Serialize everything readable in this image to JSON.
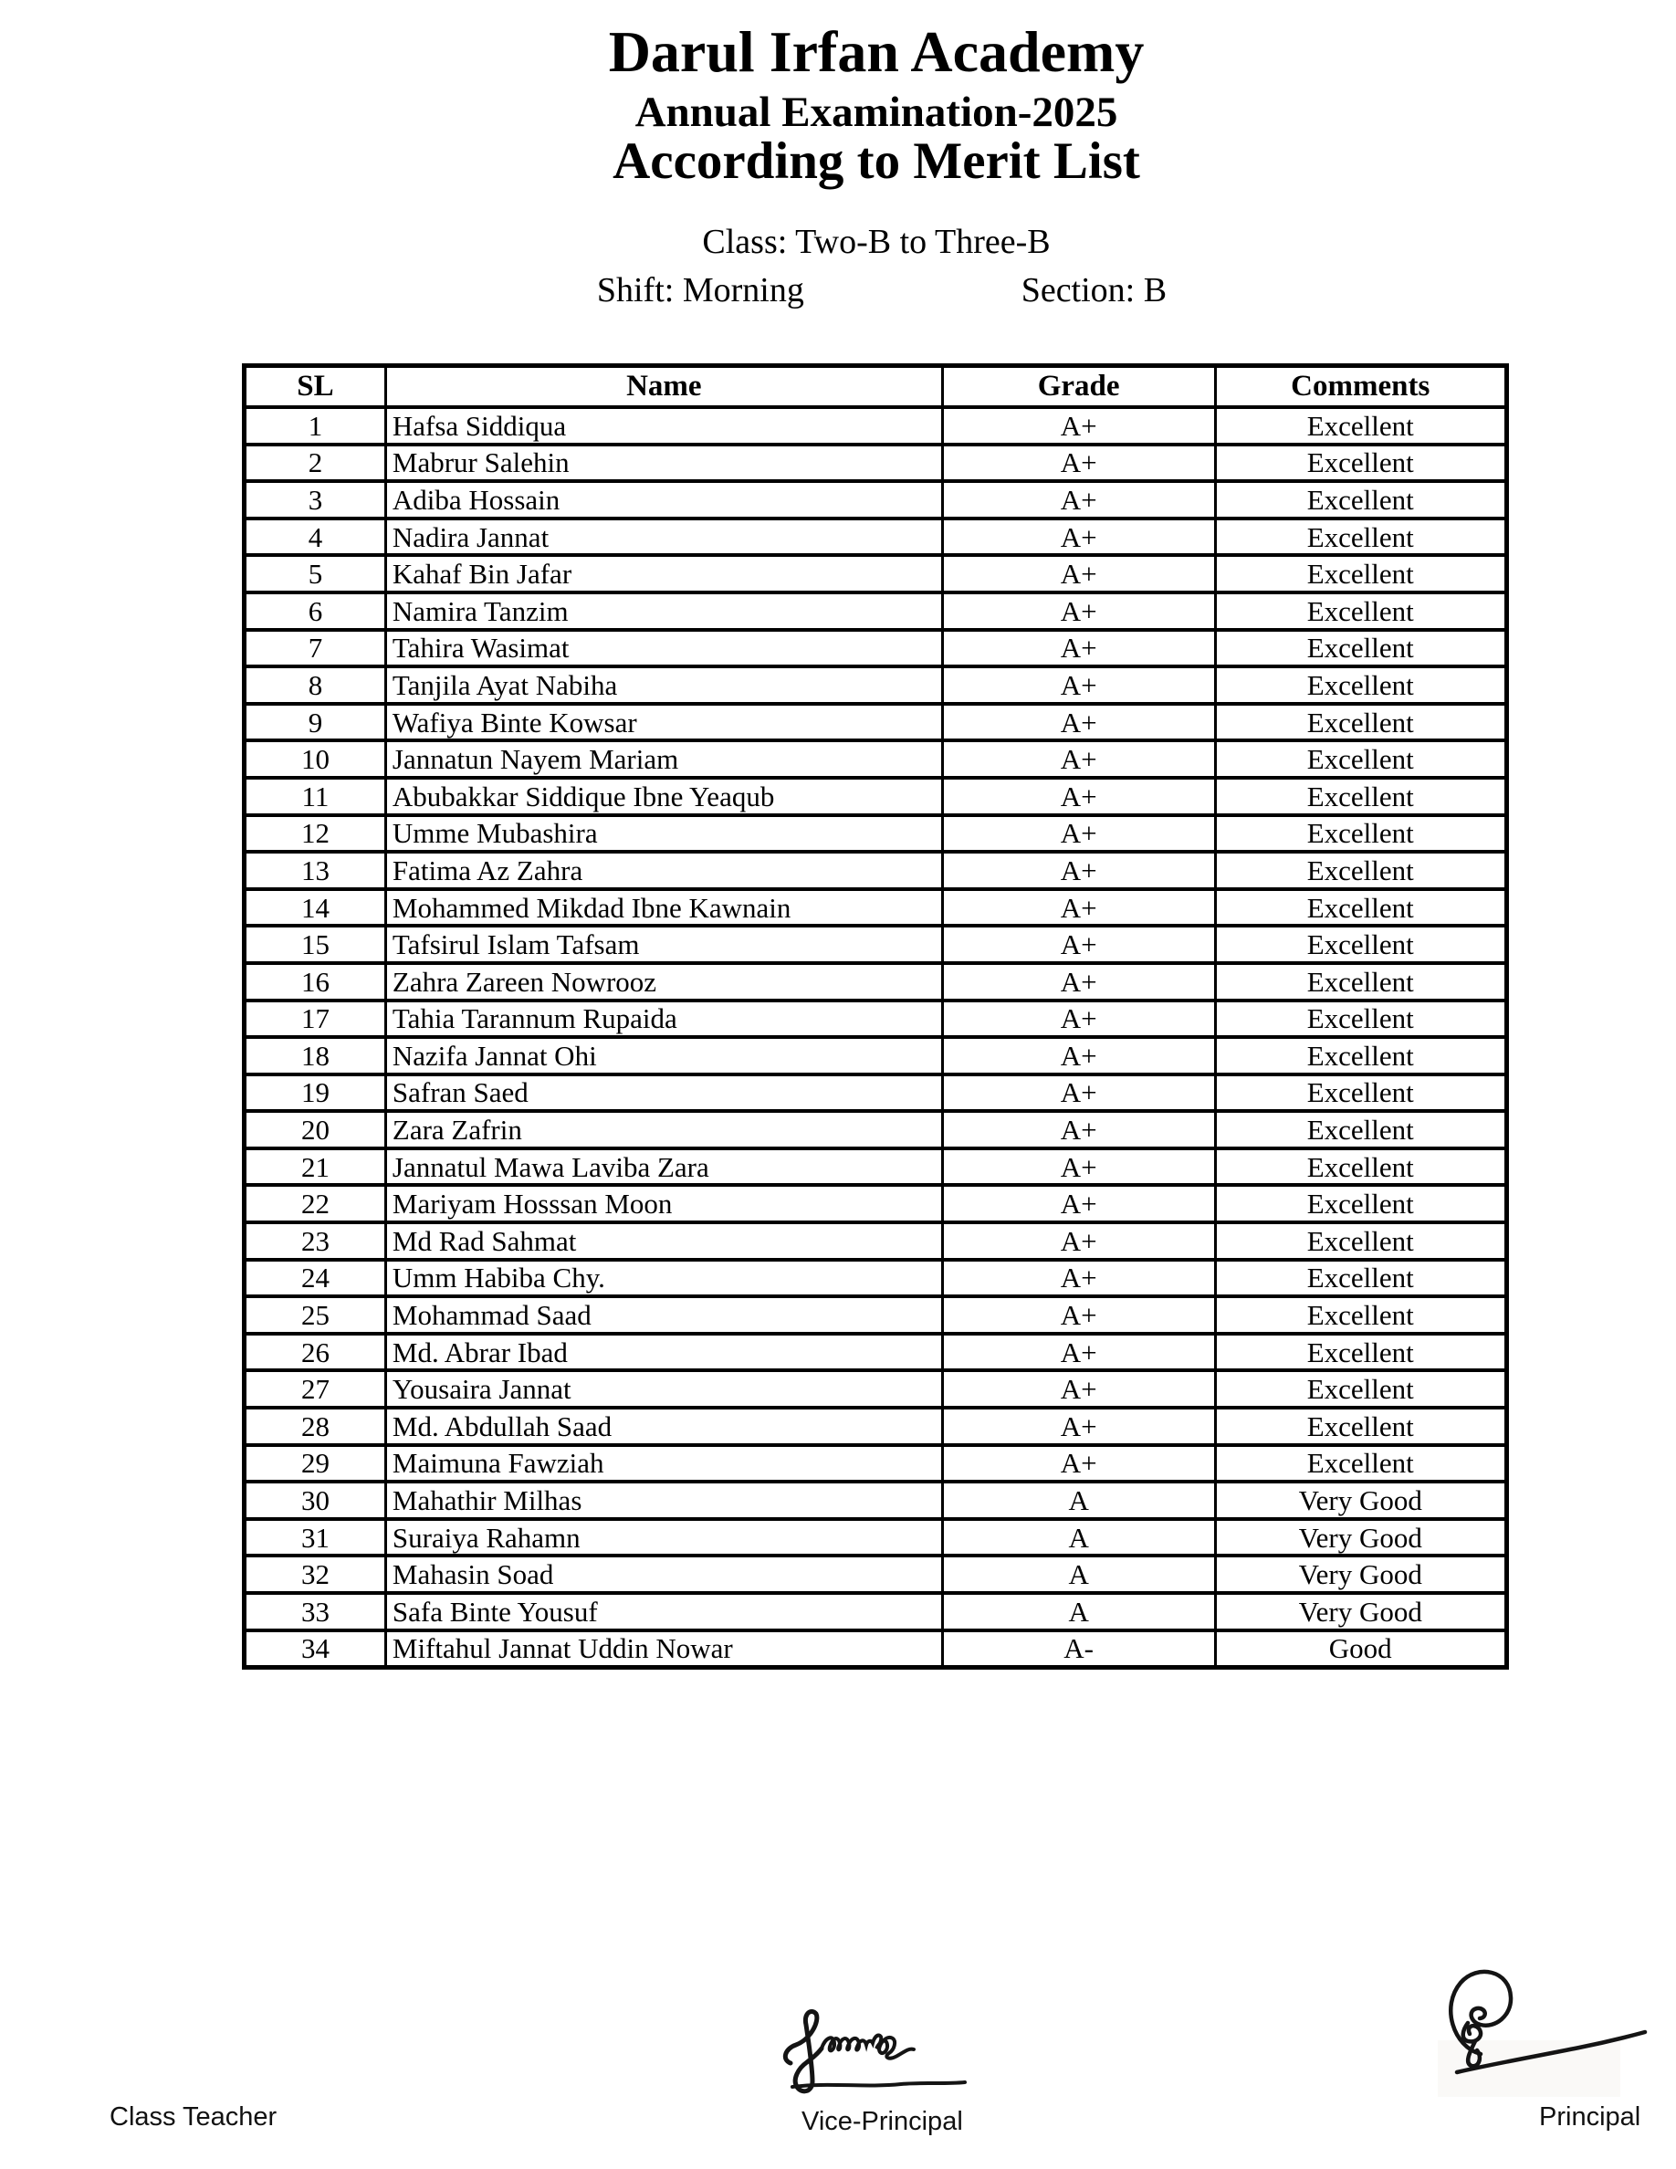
{
  "header": {
    "title": "Darul Irfan Academy",
    "subtitle": "Annual Examination-2025",
    "subtitle2": "According to Merit List",
    "class_line": "Class: Two-B to Three-B",
    "shift": "Shift: Morning",
    "section": "Section: B"
  },
  "table": {
    "columns": [
      "SL",
      "Name",
      "Grade",
      "Comments"
    ],
    "col_widths_pct": [
      11.2,
      44.1,
      21.6,
      23.1
    ],
    "rows": [
      [
        "1",
        "Hafsa Siddiqua",
        "A+",
        "Excellent"
      ],
      [
        "2",
        "Mabrur Salehin",
        "A+",
        "Excellent"
      ],
      [
        "3",
        "Adiba Hossain",
        "A+",
        "Excellent"
      ],
      [
        "4",
        "Nadira Jannat",
        "A+",
        "Excellent"
      ],
      [
        "5",
        "Kahaf Bin Jafar",
        "A+",
        "Excellent"
      ],
      [
        "6",
        "Namira Tanzim",
        "A+",
        "Excellent"
      ],
      [
        "7",
        "Tahira Wasimat",
        "A+",
        "Excellent"
      ],
      [
        "8",
        "Tanjila Ayat Nabiha",
        "A+",
        "Excellent"
      ],
      [
        "9",
        "Wafiya Binte Kowsar",
        "A+",
        "Excellent"
      ],
      [
        "10",
        "Jannatun Nayem Mariam",
        "A+",
        "Excellent"
      ],
      [
        "11",
        "Abubakkar Siddique Ibne Yeaqub",
        "A+",
        "Excellent"
      ],
      [
        "12",
        "Umme Mubashira",
        "A+",
        "Excellent"
      ],
      [
        "13",
        "Fatima Az Zahra",
        "A+",
        "Excellent"
      ],
      [
        "14",
        "Mohammed Mikdad Ibne Kawnain",
        "A+",
        "Excellent"
      ],
      [
        "15",
        "Tafsirul Islam Tafsam",
        "A+",
        "Excellent"
      ],
      [
        "16",
        "Zahra Zareen Nowrooz",
        "A+",
        "Excellent"
      ],
      [
        "17",
        "Tahia Tarannum Rupaida",
        "A+",
        "Excellent"
      ],
      [
        "18",
        "Nazifa Jannat Ohi",
        "A+",
        "Excellent"
      ],
      [
        "19",
        "Safran Saed",
        "A+",
        "Excellent"
      ],
      [
        "20",
        "Zara Zafrin",
        "A+",
        "Excellent"
      ],
      [
        "21",
        "Jannatul Mawa Laviba Zara",
        "A+",
        "Excellent"
      ],
      [
        "22",
        "Mariyam Hosssan Moon",
        "A+",
        "Excellent"
      ],
      [
        "23",
        "Md Rad Sahmat",
        "A+",
        "Excellent"
      ],
      [
        "24",
        "Umm Habiba Chy.",
        "A+",
        "Excellent"
      ],
      [
        "25",
        "Mohammad Saad",
        "A+",
        "Excellent"
      ],
      [
        "26",
        "Md. Abrar Ibad",
        "A+",
        "Excellent"
      ],
      [
        "27",
        "Yousaira Jannat",
        "A+",
        "Excellent"
      ],
      [
        "28",
        "Md. Abdullah Saad",
        "A+",
        "Excellent"
      ],
      [
        "29",
        "Maimuna Fawziah",
        "A+",
        "Excellent"
      ],
      [
        "30",
        "Mahathir Milhas",
        "A",
        "Very Good"
      ],
      [
        "31",
        "Suraiya Rahamn",
        "A",
        "Very Good"
      ],
      [
        "32",
        "Mahasin Soad",
        "A",
        "Very Good"
      ],
      [
        "33",
        "Safa Binte Yousuf",
        "A",
        "Very Good"
      ],
      [
        "34",
        "Miftahul Jannat Uddin Nowar",
        "A-",
        "Good"
      ]
    ]
  },
  "footer": {
    "class_teacher_label": "Class Teacher",
    "vice_principal_label": "Vice-Principal",
    "principal_label": "Principal"
  }
}
